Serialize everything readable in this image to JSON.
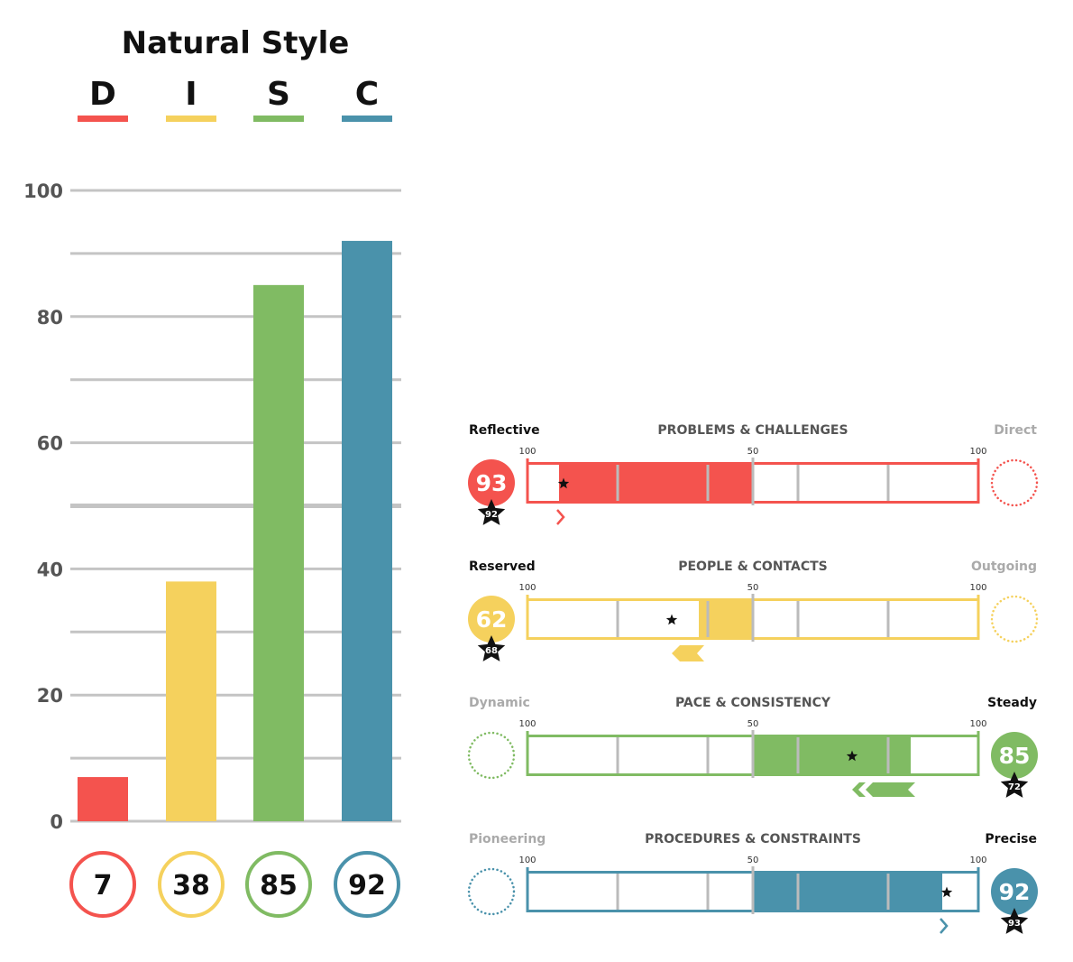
{
  "chart_data": [
    {
      "type": "bar",
      "title": "Natural Style",
      "categories": [
        "D",
        "I",
        "S",
        "C"
      ],
      "values": [
        7,
        38,
        85,
        92
      ],
      "colors": [
        "#f4534e",
        "#f5d15d",
        "#80bb63",
        "#4a92ab"
      ],
      "ylim": [
        0,
        100
      ],
      "yticks": [
        "0",
        "20",
        "40",
        "60",
        "80",
        "100"
      ],
      "grid": true,
      "midline": 50,
      "score_labels": [
        "7",
        "38",
        "85",
        "92"
      ]
    },
    {
      "type": "bar",
      "orientation": "horizontal-bipolar",
      "scale_labels": {
        "left": "100",
        "center": "50",
        "right": "100"
      },
      "rows": [
        {
          "title": "PROBLEMS & CHALLENGES",
          "left_label": "Reflective",
          "right_label": "Direct",
          "active_side": "left",
          "score": 93,
          "adapted": 92,
          "score_text": "93",
          "adapted_text": "92",
          "arrow": "single-right",
          "color": "#f4534e"
        },
        {
          "title": "PEOPLE & CONTACTS",
          "left_label": "Reserved",
          "right_label": "Outgoing",
          "active_side": "left",
          "score": 62,
          "adapted": 68,
          "score_text": "62",
          "adapted_text": "68",
          "arrow": "single-left",
          "color": "#f5d15d"
        },
        {
          "title": "PACE & CONSISTENCY",
          "left_label": "Dynamic",
          "right_label": "Steady",
          "active_side": "right",
          "score": 85,
          "adapted": 72,
          "score_text": "85",
          "adapted_text": "72",
          "arrow": "double-left",
          "color": "#80bb63"
        },
        {
          "title": "PROCEDURES & CONSTRAINTS",
          "left_label": "Pioneering",
          "right_label": "Precise",
          "active_side": "right",
          "score": 92,
          "adapted": 93,
          "score_text": "92",
          "adapted_text": "93",
          "arrow": "single-right",
          "color": "#4a92ab"
        }
      ]
    }
  ]
}
